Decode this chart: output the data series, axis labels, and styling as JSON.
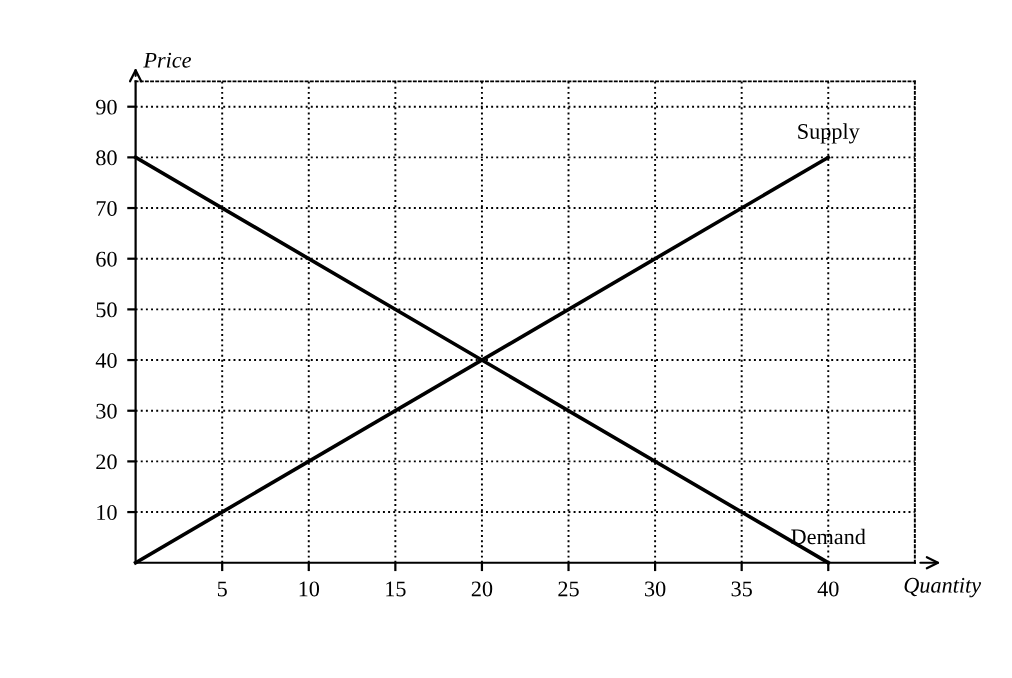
{
  "chart_data": {
    "type": "line",
    "xlabel": "Quantity",
    "ylabel": "Price",
    "x": [
      0,
      40
    ],
    "series": [
      {
        "name": "Supply",
        "color": "#000000",
        "values": [
          0,
          80
        ]
      },
      {
        "name": "Demand",
        "color": "#000000",
        "values": [
          80,
          0
        ]
      }
    ],
    "xlim": [
      0,
      45
    ],
    "ylim": [
      0,
      95
    ],
    "xticks": [
      5,
      10,
      15,
      20,
      25,
      30,
      35,
      40
    ],
    "yticks": [
      10,
      20,
      30,
      40,
      50,
      60,
      70,
      80,
      90
    ],
    "grid": true,
    "legend": false,
    "marker": "none",
    "line_style": "solid"
  }
}
